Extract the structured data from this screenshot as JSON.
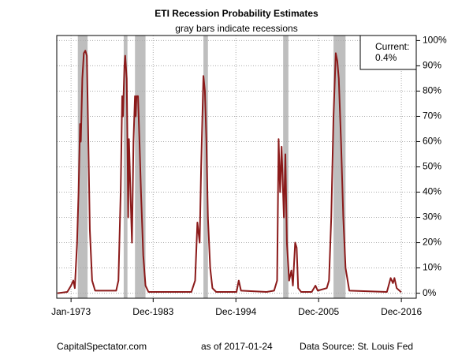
{
  "chart_data": {
    "type": "line",
    "title": "ETI Recession Probability Estimates",
    "subtitle": "gray bars indicate recessions",
    "annotation_title": "Current:",
    "annotation_value": "0.4%",
    "footer_left": "CapitalSpectator.com",
    "footer_center": "as of 2017-01-24",
    "footer_right": "Data Source: St. Louis Fed",
    "xlim": [
      1971.1,
      2018.9
    ],
    "xticks": [
      {
        "value": 1973.0,
        "label": "Jan-1973"
      },
      {
        "value": 1983.92,
        "label": "Dec-1983"
      },
      {
        "value": 1994.92,
        "label": "Dec-1994"
      },
      {
        "value": 2005.92,
        "label": "Dec-2005"
      },
      {
        "value": 2016.92,
        "label": "Dec-2016"
      }
    ],
    "ylim": [
      -2,
      102
    ],
    "yticks": [
      {
        "value": 0,
        "label": "0%"
      },
      {
        "value": 10,
        "label": "10%"
      },
      {
        "value": 20,
        "label": "20%"
      },
      {
        "value": 30,
        "label": "30%"
      },
      {
        "value": 40,
        "label": "40%"
      },
      {
        "value": 50,
        "label": "50%"
      },
      {
        "value": 60,
        "label": "60%"
      },
      {
        "value": 70,
        "label": "70%"
      },
      {
        "value": 80,
        "label": "80%"
      },
      {
        "value": 90,
        "label": "90%"
      },
      {
        "value": 100,
        "label": "100%"
      }
    ],
    "grid": true,
    "recession_color": "#bebebe",
    "recessions": [
      [
        1973.9,
        1975.2
      ],
      [
        1980.0,
        1980.5
      ],
      [
        1981.5,
        1982.9
      ],
      [
        1990.6,
        1991.2
      ],
      [
        2001.2,
        2001.9
      ],
      [
        2007.9,
        2009.5
      ]
    ],
    "series": [
      {
        "name": "ETI Recession Probability",
        "color": "#8b1a1a",
        "x": [
          1971.2,
          1972.5,
          1973.0,
          1973.3,
          1973.5,
          1973.8,
          1974.0,
          1974.2,
          1974.3,
          1974.5,
          1974.7,
          1974.9,
          1975.1,
          1975.3,
          1975.5,
          1975.8,
          1976.2,
          1979.0,
          1979.3,
          1979.6,
          1979.8,
          1979.9,
          1980.1,
          1980.2,
          1980.4,
          1980.5,
          1980.6,
          1980.7,
          1980.9,
          1981.1,
          1981.3,
          1981.5,
          1981.6,
          1981.7,
          1981.9,
          1982.1,
          1982.3,
          1982.6,
          1982.9,
          1983.3,
          1989.0,
          1989.5,
          1989.8,
          1990.1,
          1990.3,
          1990.6,
          1990.8,
          1991.0,
          1991.2,
          1991.5,
          1991.8,
          1992.3,
          1995.0,
          1995.3,
          1995.6,
          1999.0,
          2000.0,
          2000.4,
          2000.6,
          2000.8,
          2001.0,
          2001.3,
          2001.5,
          2001.7,
          2002.0,
          2002.3,
          2002.5,
          2002.8,
          2003.0,
          2003.2,
          2003.6,
          2005.0,
          2005.5,
          2005.8,
          2007.0,
          2007.3,
          2007.6,
          2007.9,
          2008.2,
          2008.4,
          2008.6,
          2008.9,
          2009.2,
          2009.5,
          2010.0,
          2015.0,
          2015.5,
          2015.8,
          2016.0,
          2016.3,
          2016.9
        ],
        "values": [
          0,
          0.5,
          3,
          5,
          2,
          20,
          40,
          67,
          60,
          85,
          95,
          96,
          94,
          60,
          25,
          5,
          1,
          1,
          5,
          40,
          78,
          70,
          90,
          94,
          85,
          60,
          30,
          61,
          40,
          20,
          60,
          78,
          70,
          78,
          78,
          60,
          40,
          15,
          3,
          0.5,
          0.5,
          5,
          28,
          20,
          50,
          86,
          80,
          60,
          30,
          10,
          2,
          0.5,
          0.5,
          5,
          1,
          0.5,
          1,
          5,
          61,
          40,
          58,
          30,
          55,
          20,
          5,
          9,
          3,
          20,
          18,
          2,
          0.5,
          0.5,
          3,
          1,
          2,
          5,
          30,
          70,
          95,
          92,
          85,
          60,
          30,
          10,
          1,
          0.5,
          6,
          4,
          6,
          2,
          0.4
        ]
      }
    ]
  }
}
